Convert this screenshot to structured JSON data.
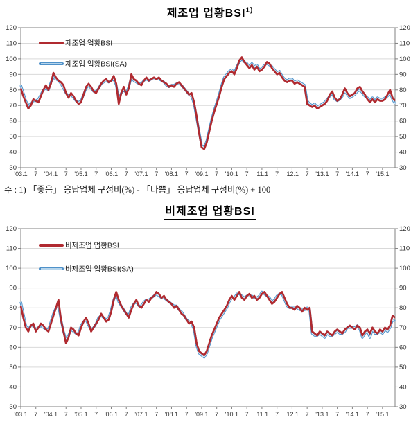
{
  "page": {
    "title1": {
      "text": "제조업 업황BSI",
      "sup": "1)"
    },
    "title2": {
      "text": "비제조업 업황BSI",
      "sup": ""
    },
    "footnote": "주 : 1) 「좋음」 응답업체 구성비(%) - 「나쁨」 응답업체 구성비(%) + 100"
  },
  "colors": {
    "actual": "#b02a30",
    "sa_edge": "#4f91c9",
    "sa_core": "#d9ecf8",
    "grid": "#d9d9d9",
    "axis": "#808080",
    "tick_text": "#333333",
    "legend_text": "#1a1a1a"
  },
  "chart_data": [
    {
      "type": "line",
      "title": "제조업 업황BSI 1)",
      "x_start": "2003-01",
      "x_end": "2015-06",
      "frequency": "monthly",
      "ylim": [
        30,
        120
      ],
      "y_ticks": [
        30,
        40,
        50,
        60,
        70,
        80,
        90,
        100,
        110,
        120
      ],
      "grid": "horizontal",
      "legend_position": "inside-top-left",
      "x_tick_labels": [
        {
          "label": "'03.1",
          "month": 0
        },
        {
          "label": "7",
          "month": 6
        },
        {
          "label": "'04.1",
          "month": 12
        },
        {
          "label": "7",
          "month": 18
        },
        {
          "label": "'05.1",
          "month": 24
        },
        {
          "label": "7",
          "month": 30
        },
        {
          "label": "'06.1",
          "month": 36
        },
        {
          "label": "7",
          "month": 42
        },
        {
          "label": "'07.1",
          "month": 48
        },
        {
          "label": "7",
          "month": 54
        },
        {
          "label": "'08.1",
          "month": 60
        },
        {
          "label": "7",
          "month": 66
        },
        {
          "label": "'09.1",
          "month": 72
        },
        {
          "label": "7",
          "month": 78
        },
        {
          "label": "'10.1",
          "month": 84
        },
        {
          "label": "7",
          "month": 90
        },
        {
          "label": "'11.1",
          "month": 96
        },
        {
          "label": "7",
          "month": 102
        },
        {
          "label": "'12.1",
          "month": 108
        },
        {
          "label": "7",
          "month": 114
        },
        {
          "label": "'13.1",
          "month": 120
        },
        {
          "label": "7",
          "month": 126
        },
        {
          "label": "'14.1",
          "month": 132
        },
        {
          "label": "7",
          "month": 138
        },
        {
          "label": "'15.1",
          "month": 144
        }
      ],
      "series": [
        {
          "name": "제조업 업황BSI",
          "style": "solid-red",
          "values": [
            81,
            76,
            72,
            68,
            70,
            74,
            73,
            72,
            76,
            80,
            83,
            80,
            84,
            91,
            88,
            86,
            85,
            83,
            78,
            75,
            78,
            76,
            73,
            71,
            72,
            77,
            82,
            84,
            82,
            79,
            78,
            81,
            84,
            86,
            87,
            85,
            86,
            89,
            84,
            71,
            78,
            82,
            77,
            81,
            90,
            87,
            86,
            84,
            83,
            86,
            88,
            86,
            87,
            88,
            87,
            88,
            86,
            85,
            84,
            82,
            83,
            82,
            84,
            85,
            83,
            81,
            79,
            77,
            78,
            72,
            63,
            52,
            43,
            42,
            46,
            53,
            60,
            66,
            71,
            76,
            82,
            87,
            89,
            91,
            92,
            90,
            94,
            99,
            101,
            98,
            96,
            94,
            96,
            93,
            95,
            92,
            93,
            95,
            98,
            97,
            94,
            92,
            90,
            91,
            88,
            86,
            85,
            86,
            86,
            84,
            85,
            84,
            83,
            82,
            71,
            70,
            69,
            70,
            68,
            69,
            70,
            71,
            73,
            77,
            79,
            75,
            73,
            74,
            77,
            81,
            78,
            76,
            77,
            78,
            81,
            82,
            79,
            77,
            74,
            72,
            74,
            72,
            74,
            73,
            73,
            74,
            77,
            80,
            75,
            73
          ]
        },
        {
          "name": "제조업 업황BSI(SA)",
          "style": "double-blue",
          "values": [
            83,
            78,
            73,
            70,
            71,
            73,
            73,
            74,
            77,
            80,
            81,
            80,
            85,
            88,
            87,
            86,
            84,
            81,
            78,
            76,
            77,
            75,
            73,
            72,
            73,
            77,
            81,
            83,
            81,
            79,
            79,
            81,
            84,
            85,
            86,
            85,
            86,
            87,
            83,
            74,
            78,
            80,
            78,
            82,
            88,
            86,
            85,
            84,
            84,
            86,
            87,
            86,
            87,
            87,
            87,
            87,
            86,
            85,
            83,
            82,
            83,
            83,
            84,
            84,
            83,
            81,
            79,
            77,
            76,
            71,
            62,
            53,
            44,
            43,
            47,
            54,
            61,
            67,
            72,
            77,
            83,
            88,
            90,
            92,
            93,
            91,
            95,
            98,
            100,
            98,
            97,
            95,
            97,
            95,
            96,
            93,
            94,
            96,
            97,
            96,
            95,
            93,
            91,
            92,
            89,
            87,
            86,
            87,
            87,
            85,
            86,
            85,
            84,
            83,
            73,
            71,
            70,
            71,
            69,
            70,
            71,
            72,
            74,
            76,
            78,
            74,
            73,
            74,
            76,
            79,
            77,
            75,
            76,
            77,
            79,
            80,
            78,
            76,
            75,
            73,
            75,
            73,
            75,
            74,
            74,
            75,
            76,
            78,
            74,
            71
          ]
        }
      ]
    },
    {
      "type": "line",
      "title": "비제조업 업황BSI",
      "x_start": "2003-01",
      "x_end": "2015-06",
      "frequency": "monthly",
      "ylim": [
        30,
        120
      ],
      "y_ticks": [
        30,
        40,
        50,
        60,
        70,
        80,
        90,
        100,
        110,
        120
      ],
      "grid": "horizontal",
      "legend_position": "inside-top-left",
      "x_tick_labels": [
        {
          "label": "'03.1",
          "month": 0
        },
        {
          "label": "7",
          "month": 6
        },
        {
          "label": "'04.1",
          "month": 12
        },
        {
          "label": "7",
          "month": 18
        },
        {
          "label": "'05.1",
          "month": 24
        },
        {
          "label": "7",
          "month": 30
        },
        {
          "label": "'06.1",
          "month": 36
        },
        {
          "label": "7",
          "month": 42
        },
        {
          "label": "'07.1",
          "month": 48
        },
        {
          "label": "7",
          "month": 54
        },
        {
          "label": "'08.1",
          "month": 60
        },
        {
          "label": "7",
          "month": 66
        },
        {
          "label": "'09.1",
          "month": 72
        },
        {
          "label": "7",
          "month": 78
        },
        {
          "label": "'10.1",
          "month": 84
        },
        {
          "label": "7",
          "month": 90
        },
        {
          "label": "'11.1",
          "month": 96
        },
        {
          "label": "7",
          "month": 102
        },
        {
          "label": "'12.1",
          "month": 108
        },
        {
          "label": "7",
          "month": 114
        },
        {
          "label": "'13.1",
          "month": 120
        },
        {
          "label": "7",
          "month": 126
        },
        {
          "label": "'14.1",
          "month": 132
        },
        {
          "label": "7",
          "month": 138
        },
        {
          "label": "'15.1",
          "month": 144
        }
      ],
      "series": [
        {
          "name": "비제조업 업황BSI",
          "style": "solid-red",
          "values": [
            81,
            75,
            70,
            68,
            71,
            72,
            68,
            70,
            72,
            71,
            69,
            68,
            72,
            76,
            80,
            84,
            74,
            68,
            62,
            65,
            70,
            69,
            67,
            66,
            70,
            73,
            75,
            72,
            68,
            70,
            72,
            74,
            77,
            75,
            73,
            74,
            78,
            84,
            88,
            84,
            81,
            79,
            77,
            75,
            79,
            82,
            84,
            81,
            80,
            82,
            84,
            83,
            85,
            86,
            88,
            87,
            85,
            86,
            84,
            83,
            82,
            80,
            81,
            79,
            77,
            76,
            74,
            72,
            73,
            70,
            62,
            58,
            57,
            56,
            58,
            62,
            66,
            69,
            72,
            75,
            77,
            79,
            81,
            84,
            86,
            84,
            86,
            88,
            85,
            84,
            86,
            87,
            85,
            86,
            84,
            85,
            87,
            88,
            86,
            84,
            82,
            83,
            85,
            87,
            88,
            85,
            82,
            80,
            80,
            79,
            81,
            80,
            78,
            80,
            79,
            80,
            68,
            67,
            66,
            68,
            67,
            66,
            68,
            67,
            66,
            68,
            69,
            68,
            67,
            69,
            70,
            71,
            70,
            69,
            71,
            70,
            66,
            68,
            69,
            67,
            70,
            68,
            67,
            69,
            68,
            70,
            69,
            71,
            76,
            75
          ]
        },
        {
          "name": "비제조업 업황BSI(SA)",
          "style": "double-blue",
          "values": [
            83,
            77,
            71,
            69,
            71,
            71,
            69,
            70,
            71,
            70,
            69,
            69,
            73,
            77,
            80,
            81,
            74,
            68,
            64,
            66,
            69,
            68,
            67,
            67,
            71,
            73,
            74,
            71,
            69,
            70,
            72,
            75,
            76,
            75,
            74,
            75,
            79,
            84,
            87,
            83,
            81,
            79,
            77,
            76,
            80,
            82,
            83,
            81,
            81,
            83,
            84,
            84,
            85,
            86,
            87,
            86,
            85,
            85,
            84,
            83,
            82,
            81,
            81,
            79,
            78,
            76,
            74,
            73,
            72,
            69,
            61,
            57,
            56,
            55,
            57,
            61,
            65,
            68,
            71,
            74,
            76,
            78,
            80,
            83,
            85,
            85,
            87,
            87,
            86,
            85,
            86,
            86,
            86,
            85,
            85,
            86,
            88,
            87,
            86,
            85,
            83,
            84,
            86,
            87,
            87,
            84,
            81,
            80,
            80,
            80,
            80,
            79,
            79,
            79,
            80,
            79,
            67,
            66,
            66,
            67,
            66,
            65,
            67,
            66,
            66,
            67,
            68,
            67,
            67,
            68,
            70,
            70,
            70,
            70,
            71,
            69,
            65,
            67,
            68,
            65,
            69,
            67,
            67,
            68,
            67,
            69,
            68,
            70,
            74,
            73
          ]
        }
      ]
    }
  ]
}
